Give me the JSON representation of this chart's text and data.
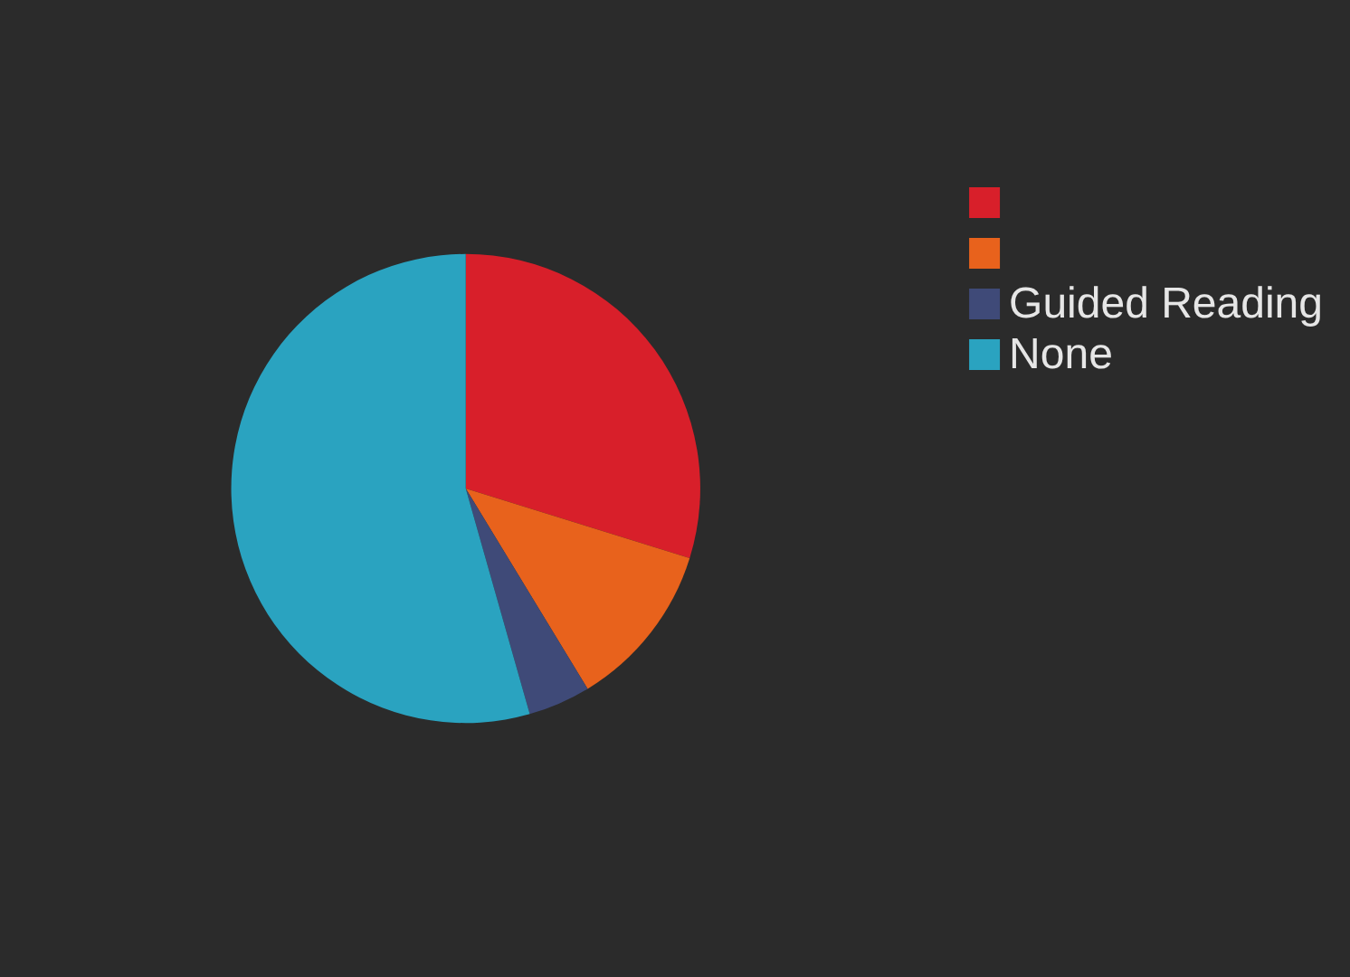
{
  "chart_data": {
    "type": "pie",
    "categories": [
      null,
      null,
      "Guided Reading",
      "None"
    ],
    "values": [
      29.8,
      11.5,
      4.3,
      54.4
    ],
    "colors": [
      "#d81f2a",
      "#e8621c",
      "#3f4a78",
      "#2aa3c0"
    ],
    "legend": "right"
  }
}
